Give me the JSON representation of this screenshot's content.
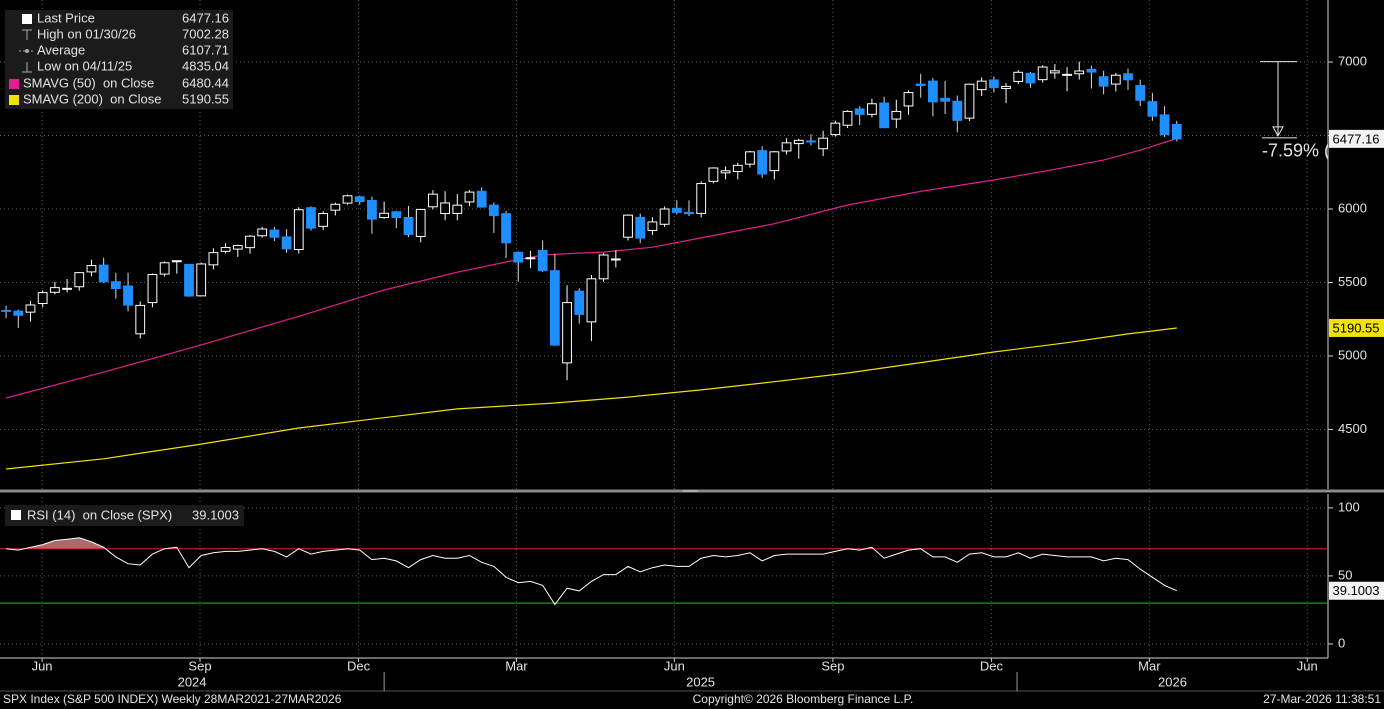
{
  "chart_data": [
    {
      "type": "candlestick",
      "open": [
        5310,
        5305,
        5298,
        5357,
        5433,
        5459,
        5471,
        5572,
        5618,
        5505,
        5476,
        5151,
        5363,
        5557,
        5644,
        5623,
        5409,
        5620,
        5712,
        5727,
        5737,
        5818,
        5857,
        5810,
        5724,
        6009,
        5882,
        5992,
        6040,
        6083,
        6058,
        5942,
        5981,
        5942,
        5813,
        6015,
        5969,
        5970,
        6048,
        6121,
        6026,
        5968,
        5705,
        5664,
        5718,
        5580,
        4953,
        5441,
        5232,
        5525,
        5655,
        5808,
        5943,
        5854,
        5896,
        6005,
        5977,
        5970,
        6188,
        6246,
        6255,
        6305,
        6397,
        6261,
        6395,
        6445,
        6463,
        6410,
        6506,
        6570,
        6681,
        6644,
        6721,
        6612,
        6701,
        6850,
        6870,
        6753,
        6733,
        6618,
        6812,
        6878,
        6820,
        6868,
        6923,
        6880,
        6926,
        6910,
        6920,
        6950,
        6900,
        6850,
        6920,
        6840,
        6730,
        6640,
        6575
      ],
      "high": [
        5342,
        5315,
        5375,
        5447,
        5505,
        5524,
        5570,
        5655,
        5669,
        5566,
        5566,
        5371,
        5561,
        5643,
        5651,
        5624,
        5636,
        5733,
        5767,
        5758,
        5822,
        5879,
        5878,
        5863,
        6012,
        6018,
        5985,
        6044,
        6099,
        6091,
        6085,
        6050,
        5986,
        6021,
        6000,
        6128,
        6121,
        6101,
        6128,
        6147,
        6044,
        5987,
        5712,
        5715,
        5787,
        5695,
        5481,
        5460,
        5551,
        5700,
        5720,
        5964,
        5969,
        5944,
        6017,
        6060,
        6059,
        6188,
        6284,
        6290,
        6315,
        6395,
        6427,
        6395,
        6482,
        6478,
        6508,
        6532,
        6601,
        6672,
        6699,
        6750,
        6764,
        6744,
        6807,
        6920,
        6891,
        6872,
        6772,
        6853,
        6895,
        6901,
        6857,
        6945,
        6932,
        6978,
        6986,
        6965,
        7002.28,
        6975,
        6940,
        6925,
        6955,
        6880,
        6790,
        6700,
        6600
      ],
      "low": [
        5257,
        5191,
        5234,
        5331,
        5419,
        5432,
        5445,
        5543,
        5497,
        5390,
        5303,
        5119,
        5331,
        5540,
        5560,
        5403,
        5407,
        5589,
        5698,
        5674,
        5696,
        5805,
        5782,
        5702,
        5697,
        5853,
        5858,
        5956,
        6028,
        6030,
        5832,
        5933,
        5869,
        5809,
        5773,
        5997,
        5923,
        5923,
        6021,
        6009,
        5837,
        5666,
        5505,
        5597,
        5572,
        5069,
        4835.04,
        5220,
        5101,
        5505,
        5602,
        5786,
        5767,
        5823,
        5878,
        5963,
        5952,
        5943,
        6174,
        6201,
        6201,
        6282,
        6212,
        6201,
        6371,
        6343,
        6433,
        6360,
        6493,
        6551,
        6570,
        6623,
        6551,
        6550,
        6641,
        6757,
        6631,
        6646,
        6521,
        6599,
        6769,
        6793,
        6720,
        6850,
        6824,
        6860,
        6886,
        6800,
        6880,
        6820,
        6780,
        6800,
        6810,
        6700,
        6600,
        6490,
        6460
      ],
      "close": [
        5305,
        5277,
        5347,
        5431,
        5465,
        5460,
        5567,
        5615,
        5505,
        5459,
        5346,
        5344,
        5554,
        5634,
        5648,
        5408,
        5626,
        5703,
        5738,
        5751,
        5815,
        5864,
        5808,
        5729,
        5995,
        5870,
        5969,
        6032,
        6090,
        6051,
        5931,
        5971,
        5942,
        5827,
        5997,
        6101,
        6041,
        6026,
        6115,
        6013,
        5955,
        5770,
        5639,
        5668,
        5581,
        5074,
        5363,
        5283,
        5525,
        5687,
        5660,
        5958,
        5802,
        5912,
        6000,
        5977,
        5968,
        6173,
        6279,
        6260,
        6297,
        6389,
        6238,
        6389,
        6450,
        6467,
        6460,
        6482,
        6584,
        6664,
        6644,
        6716,
        6553,
        6664,
        6792,
        6840,
        6729,
        6734,
        6603,
        6849,
        6870,
        6827,
        6834,
        6930,
        6858,
        6966,
        6940,
        6916,
        6939,
        6932,
        6836,
        6910,
        6879,
        6740,
        6632,
        6506,
        6477.16
      ],
      "up_color": "#ffffff",
      "down_color": "#1f8fff",
      "lines": [
        {
          "name": "SMAVG (50)  on Close",
          "color": "#e0208c",
          "x": [
            0,
            8,
            16,
            24,
            31,
            37,
            41,
            44,
            47,
            49,
            53,
            57,
            63,
            69,
            75,
            81,
            86,
            90,
            93,
            96
          ],
          "values": [
            4714,
            4890,
            5075,
            5270,
            5449,
            5570,
            5639,
            5687,
            5700,
            5707,
            5740,
            5803,
            5900,
            6027,
            6120,
            6197,
            6270,
            6333,
            6400,
            6480.44
          ]
        },
        {
          "name": "SMAVG (200)  on Close",
          "color": "#f2e20c",
          "x": [
            0,
            8,
            16,
            24,
            31,
            37,
            45,
            51,
            57,
            63,
            69,
            75,
            81,
            87,
            92,
            96
          ],
          "values": [
            4231,
            4300,
            4400,
            4510,
            4580,
            4640,
            4680,
            4720,
            4769,
            4825,
            4884,
            4955,
            5027,
            5090,
            5150,
            5190.55
          ]
        }
      ],
      "legend": [
        {
          "label": "Last Price",
          "value": 6477.16
        },
        {
          "label": "High on 01/30/26",
          "value": 7002.28
        },
        {
          "label": "Average",
          "value": 6107.71
        },
        {
          "label": "Low on 04/11/25",
          "value": 4835.04
        }
      ],
      "annotation": {
        "text": "-7.59% (",
        "from": 7002.28,
        "to": 6477.16
      },
      "ylim": [
        4088,
        7422
      ],
      "yticks": [
        4500,
        5000,
        5500,
        6000,
        6500,
        7000
      ],
      "xlim": [
        -0.5,
        108.4
      ],
      "xticks": [
        {
          "value": 2.95,
          "label": "Jun"
        },
        {
          "value": 15.9,
          "label": "Sep"
        },
        {
          "value": 28.9,
          "label": "Dec"
        },
        {
          "value": 41.85,
          "label": "Mar"
        },
        {
          "value": 54.8,
          "label": "Jun"
        },
        {
          "value": 67.8,
          "label": "Sep"
        },
        {
          "value": 80.8,
          "label": "Dec"
        },
        {
          "value": 93.75,
          "label": "Mar"
        },
        {
          "value": 106.7,
          "label": "Jun"
        }
      ],
      "years": [
        "2024",
        "2025",
        "2026"
      ],
      "year_breaks": [
        31,
        82.9
      ],
      "grid": true
    },
    {
      "type": "line",
      "name": "RSI (14)  on Close (SPX)",
      "color": "#ffffff",
      "values": [
        70,
        69,
        71,
        73,
        76,
        77,
        78,
        75,
        71,
        64,
        59,
        58,
        66,
        70,
        71,
        56,
        65,
        67,
        68,
        68,
        69,
        70,
        68,
        64,
        70,
        66,
        68,
        69,
        70,
        69,
        62,
        63,
        61,
        56,
        62,
        65,
        63,
        63,
        65,
        60,
        57,
        49,
        45,
        46,
        43,
        29,
        41,
        39,
        46,
        51,
        51,
        57,
        53,
        56,
        58,
        57,
        57,
        63,
        65,
        64,
        65,
        67,
        61,
        65,
        66,
        66,
        66,
        66,
        68,
        70,
        69,
        71,
        63,
        66,
        69,
        70,
        64,
        64,
        60,
        66,
        67,
        64,
        64,
        67,
        63,
        66,
        65,
        64,
        64,
        64,
        61,
        63,
        62,
        55,
        49,
        43,
        39.1003
      ],
      "ylim": [
        -9.6,
        108
      ],
      "yticks": [
        0,
        50,
        100
      ],
      "levels": [
        {
          "value": 70,
          "color": "#e0202a"
        },
        {
          "value": 30,
          "color": "#20c020"
        }
      ],
      "fill_color": "#a86a6a",
      "grid": true
    }
  ],
  "footer": {
    "left": "SPX Index (S&P 500 INDEX) Weekly 28MAR2021-27MAR2026",
    "center": "Copyright© 2026 Bloomberg Finance L.P.",
    "right": "27-Mar-2026 11:38:51"
  }
}
